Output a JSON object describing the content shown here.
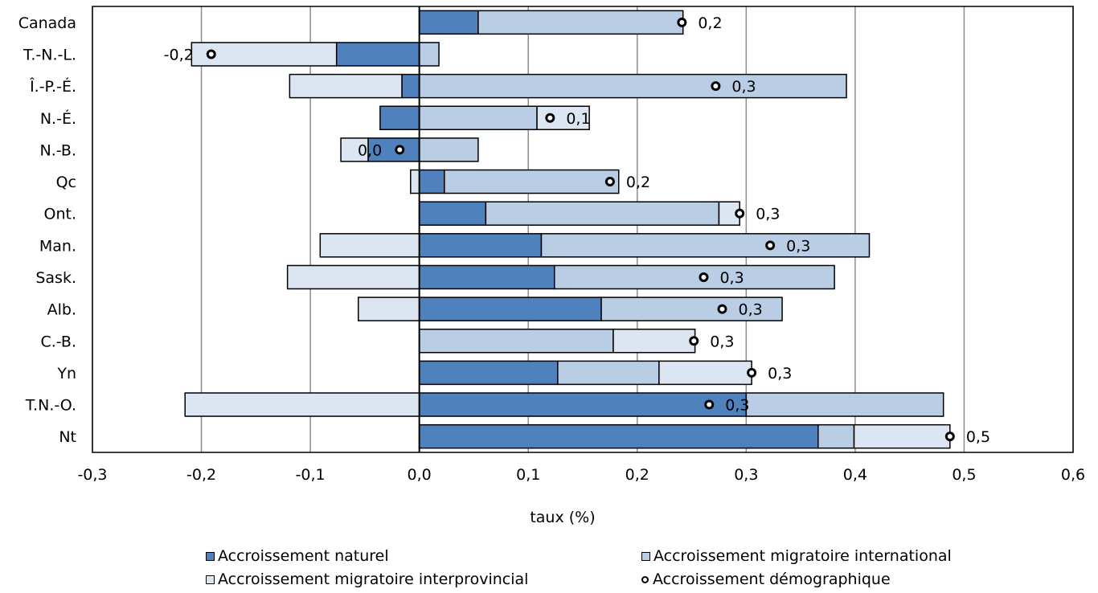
{
  "chart_data": {
    "type": "bar",
    "orientation": "horizontal",
    "stacked": true,
    "categories": [
      "Canada",
      "T.-N.-L.",
      "Î.-P.-É.",
      "N.-É.",
      "N.-B.",
      "Qc",
      "Ont.",
      "Man.",
      "Sask.",
      "Alb.",
      "C.-B.",
      "Yn",
      "T.N.-O.",
      "Nt"
    ],
    "series": [
      {
        "name": "Accroissement naturel",
        "color": "#4f81bd",
        "values": [
          0.054,
          -0.076,
          -0.016,
          -0.036,
          -0.047,
          0.023,
          0.061,
          0.112,
          0.124,
          0.167,
          0.0,
          0.127,
          0.3,
          0.366
        ]
      },
      {
        "name": "Accroissement migratoire international",
        "color": "#b9cde5",
        "values": [
          0.188,
          0.018,
          0.392,
          0.108,
          0.054,
          0.16,
          0.214,
          0.301,
          0.257,
          0.166,
          0.178,
          0.093,
          0.181,
          0.033
        ]
      },
      {
        "name": "Accroissement migratoire interprovincial",
        "color": "#dce6f2",
        "values": [
          0.0,
          -0.133,
          -0.103,
          0.048,
          -0.025,
          -0.008,
          0.019,
          -0.091,
          -0.121,
          -0.056,
          0.075,
          0.085,
          -0.215,
          0.088
        ]
      }
    ],
    "markers": {
      "name": "Accroissement démographique",
      "values": [
        0.241,
        -0.191,
        0.272,
        0.12,
        -0.018,
        0.175,
        0.294,
        0.322,
        0.261,
        0.278,
        0.252,
        0.305,
        0.266,
        0.487
      ],
      "labels": [
        "0,2",
        "-0,2",
        "0,3",
        "0,1",
        "0,0",
        "0,2",
        "0,3",
        "0,3",
        "0,3",
        "0,3",
        "0,3",
        "0,3",
        "0,3",
        "0,5"
      ]
    },
    "xlim": [
      -0.3,
      0.6
    ],
    "xticks": [
      -0.3,
      -0.2,
      -0.1,
      0.0,
      0.1,
      0.2,
      0.3,
      0.4,
      0.5,
      0.6
    ],
    "xtick_labels": [
      "-0,3",
      "-0,2",
      "-0,1",
      "0,0",
      "0,1",
      "0,2",
      "0,3",
      "0,4",
      "0,5",
      "0,6"
    ],
    "xlabel": "taux (%)",
    "ylabel": "",
    "title": "",
    "grid": "vertical",
    "legend_position": "bottom"
  }
}
